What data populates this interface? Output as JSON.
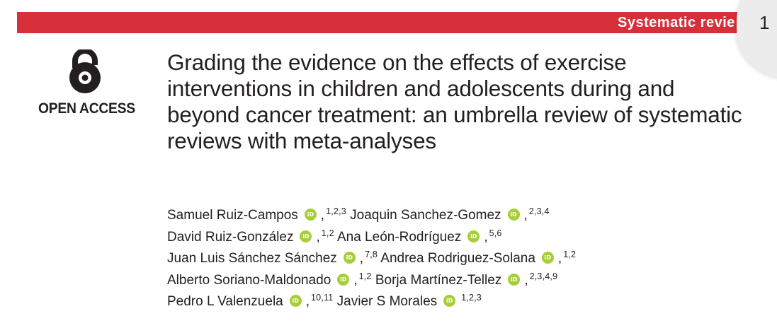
{
  "header": {
    "section_label": "Systematic revie",
    "page_number": "1",
    "bar_color": "#d6313b"
  },
  "open_access": {
    "icon": "open-access-lock-icon",
    "label": "OPEN ACCESS"
  },
  "article": {
    "title": "Grading the evidence on the effects of exercise interventions in children and adolescents during and beyond cancer treatment: an umbrella review of systematic reviews with meta-analyses"
  },
  "authors": [
    {
      "name": "Samuel Ruiz-Campos",
      "affiliations": "1,2,3"
    },
    {
      "name": "Joaquin Sanchez-Gomez",
      "affiliations": "2,3,4"
    },
    {
      "name": "David Ruiz-González",
      "affiliations": "1,2"
    },
    {
      "name": "Ana León-Rodríguez",
      "affiliations": "5,6"
    },
    {
      "name": "Juan Luis Sánchez Sánchez",
      "affiliations": "7,8"
    },
    {
      "name": "Andrea Rodriguez-Solana",
      "affiliations": "1,2"
    },
    {
      "name": "Alberto Soriano-Maldonado",
      "affiliations": "1,2"
    },
    {
      "name": "Borja Martínez-Tellez",
      "affiliations": "2,3,4,9"
    },
    {
      "name": "Pedro L Valenzuela",
      "affiliations": "10,11"
    },
    {
      "name": "Javier S Morales",
      "affiliations": "1,2,3"
    }
  ],
  "orcid_icon": "orcid-icon",
  "orcid_color": "#a6ce39"
}
